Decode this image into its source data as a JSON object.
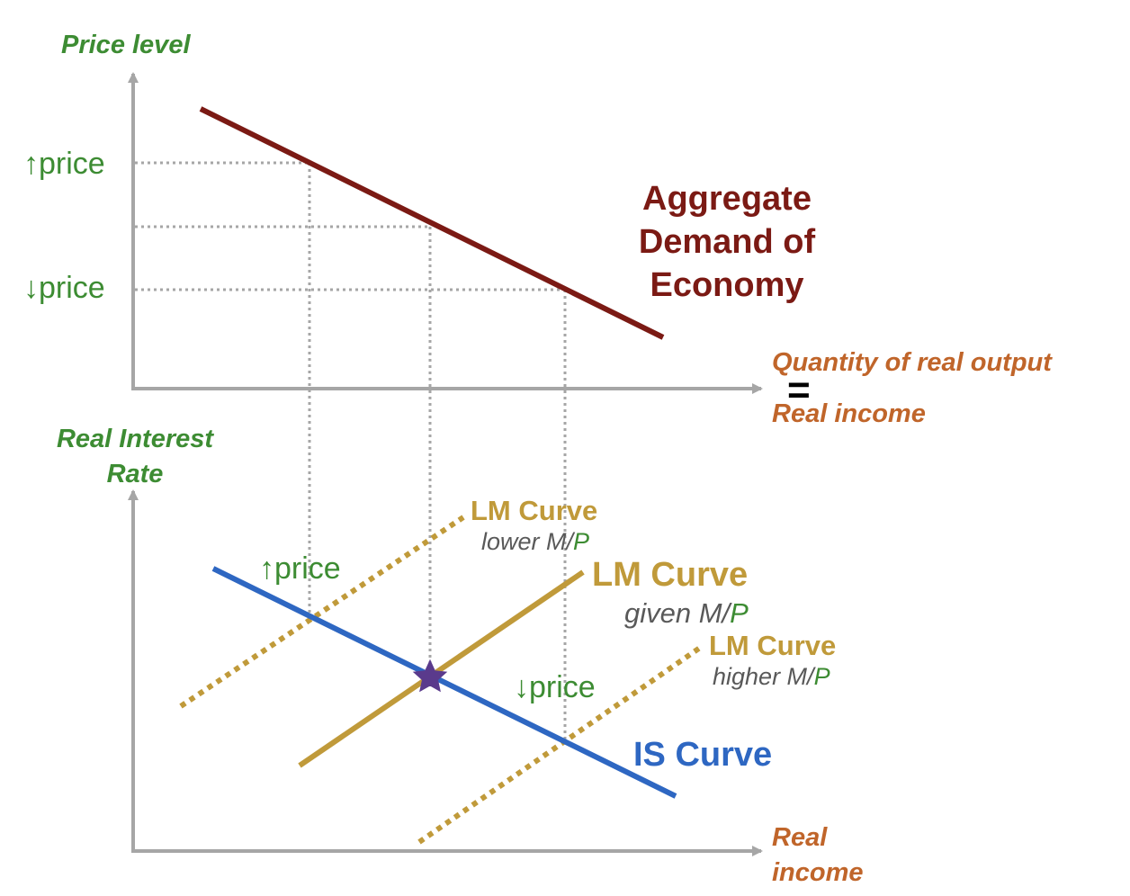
{
  "colors": {
    "axis": "#a6a6a6",
    "guide": "#a6a6a6",
    "green": "#3d8c33",
    "orange": "#c0652a",
    "ad": "#7b1a14",
    "lm": "#c09a3a",
    "is": "#2e67c2",
    "gray_text": "#595959",
    "star": "#5a3a8c"
  },
  "top_panel": {
    "y_axis_title": "Price level",
    "x_axis_title": "Quantity of real output",
    "equals": "=",
    "x_axis_title_2": "Real income",
    "price_up": "↑price",
    "price_down": "↓price",
    "ad_label_lines": [
      "Aggregate",
      "Demand of",
      "Economy"
    ]
  },
  "bottom_panel": {
    "y_axis_title_lines": [
      "Real Interest",
      "Rate"
    ],
    "x_axis_title_lines": [
      "Real",
      "income"
    ],
    "price_up": "↑price",
    "price_down": "↓price",
    "lm_lower": {
      "title": "LM Curve",
      "sub_prefix": "lower M/",
      "sub_p": "P"
    },
    "lm_given": {
      "title": "LM Curve",
      "sub_prefix": "given M/",
      "sub_p": "P"
    },
    "lm_higher": {
      "title": "LM Curve",
      "sub_prefix": "higher M/",
      "sub_p": "P"
    },
    "is_label": "IS Curve"
  }
}
